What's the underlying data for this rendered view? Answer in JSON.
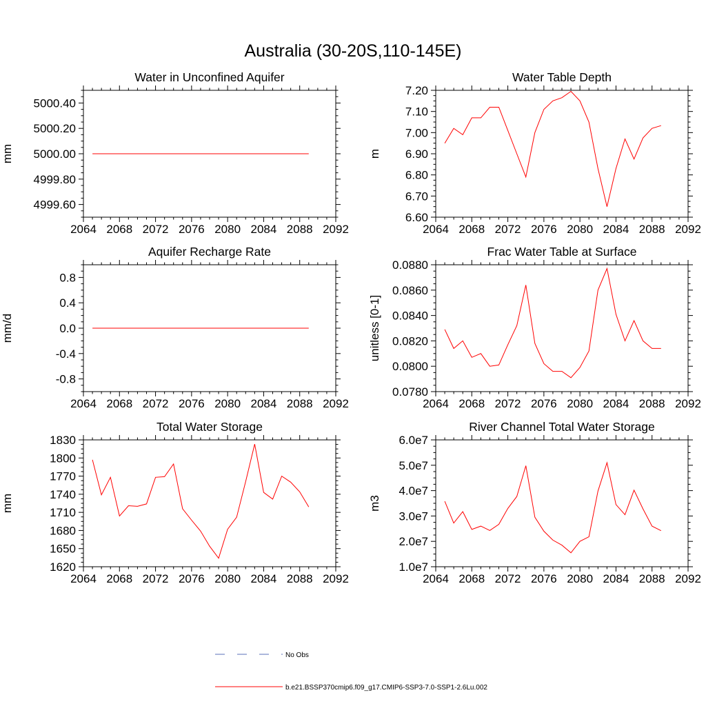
{
  "figure_title": "Australia (30-20S,110-145E)",
  "colors": {
    "series": "#ff0000",
    "obs": "#5a6fb8",
    "axis": "#000000"
  },
  "chart_data": [
    {
      "type": "line",
      "title": "Water in Unconfined Aquifer",
      "ylabel": "mm",
      "xlim": [
        2064,
        2092
      ],
      "ylim": [
        4999.5,
        5000.5
      ],
      "xticks": [
        2064,
        2068,
        2072,
        2076,
        2080,
        2084,
        2088,
        2092
      ],
      "yticks": [
        4999.6,
        4999.8,
        5000.0,
        5000.2,
        5000.4
      ],
      "ytick_labels": [
        "4999.60",
        "4999.80",
        "5000.00",
        "5000.20",
        "5000.40"
      ],
      "yminor": 0.05,
      "x": [
        2065,
        2066,
        2067,
        2068,
        2069,
        2070,
        2071,
        2072,
        2073,
        2074,
        2075,
        2076,
        2077,
        2078,
        2079,
        2080,
        2081,
        2082,
        2083,
        2084,
        2085,
        2086,
        2087,
        2088,
        2089
      ],
      "series": [
        {
          "values": [
            5000,
            5000,
            5000,
            5000,
            5000,
            5000,
            5000,
            5000,
            5000,
            5000,
            5000,
            5000,
            5000,
            5000,
            5000,
            5000,
            5000,
            5000,
            5000,
            5000,
            5000,
            5000,
            5000,
            5000,
            5000
          ]
        }
      ]
    },
    {
      "type": "line",
      "title": "Water Table Depth",
      "ylabel": "m",
      "xlim": [
        2064,
        2092
      ],
      "ylim": [
        6.6,
        7.2
      ],
      "xticks": [
        2064,
        2068,
        2072,
        2076,
        2080,
        2084,
        2088,
        2092
      ],
      "yticks": [
        6.6,
        6.7,
        6.8,
        6.9,
        7.0,
        7.1,
        7.2
      ],
      "ytick_labels": [
        "6.60",
        "6.70",
        "6.80",
        "6.90",
        "7.00",
        "7.10",
        "7.20"
      ],
      "yminor": 0.025,
      "x": [
        2065,
        2066,
        2067,
        2068,
        2069,
        2070,
        2071,
        2072,
        2073,
        2074,
        2075,
        2076,
        2077,
        2078,
        2079,
        2080,
        2081,
        2082,
        2083,
        2084,
        2085,
        2086,
        2087,
        2088,
        2089
      ],
      "series": [
        {
          "values": [
            6.95,
            7.02,
            6.99,
            7.07,
            7.07,
            7.12,
            7.12,
            7.01,
            6.9,
            6.79,
            7.0,
            7.11,
            7.15,
            7.165,
            7.195,
            7.15,
            7.05,
            6.83,
            6.65,
            6.83,
            6.97,
            6.875,
            6.975,
            7.02,
            7.033
          ]
        }
      ]
    },
    {
      "type": "line",
      "title": "Aquifer Recharge Rate",
      "ylabel": "mm/d",
      "xlim": [
        2064,
        2092
      ],
      "ylim": [
        -1.0,
        1.0
      ],
      "xticks": [
        2064,
        2068,
        2072,
        2076,
        2080,
        2084,
        2088,
        2092
      ],
      "yticks": [
        -0.8,
        -0.4,
        0.0,
        0.4,
        0.8
      ],
      "ytick_labels": [
        "-0.8",
        "-0.4",
        "0.0",
        "0.4",
        "0.8"
      ],
      "yminor": 0.1,
      "x": [
        2065,
        2066,
        2067,
        2068,
        2069,
        2070,
        2071,
        2072,
        2073,
        2074,
        2075,
        2076,
        2077,
        2078,
        2079,
        2080,
        2081,
        2082,
        2083,
        2084,
        2085,
        2086,
        2087,
        2088,
        2089
      ],
      "series": [
        {
          "values": [
            0,
            0,
            0,
            0,
            0,
            0,
            0,
            0,
            0,
            0,
            0,
            0,
            0,
            0,
            0,
            0,
            0,
            0,
            0,
            0,
            0,
            0,
            0,
            0,
            0
          ]
        }
      ]
    },
    {
      "type": "line",
      "title": "Frac Water Table at Surface",
      "ylabel": "unitless [0-1]",
      "xlim": [
        2064,
        2092
      ],
      "ylim": [
        0.078,
        0.088
      ],
      "xticks": [
        2064,
        2068,
        2072,
        2076,
        2080,
        2084,
        2088,
        2092
      ],
      "yticks": [
        0.078,
        0.08,
        0.082,
        0.084,
        0.086,
        0.088
      ],
      "ytick_labels": [
        "0.0780",
        "0.0800",
        "0.0820",
        "0.0840",
        "0.0860",
        "0.0880"
      ],
      "yminor": 0.0005,
      "x": [
        2065,
        2066,
        2067,
        2068,
        2069,
        2070,
        2071,
        2072,
        2073,
        2074,
        2075,
        2076,
        2077,
        2078,
        2079,
        2080,
        2081,
        2082,
        2083,
        2084,
        2085,
        2086,
        2087,
        2088,
        2089
      ],
      "series": [
        {
          "values": [
            0.0829,
            0.0814,
            0.082,
            0.0807,
            0.081,
            0.08,
            0.0801,
            0.0817,
            0.0832,
            0.0864,
            0.0818,
            0.0802,
            0.0796,
            0.0796,
            0.0791,
            0.0799,
            0.0812,
            0.086,
            0.0877,
            0.0841,
            0.082,
            0.0836,
            0.082,
            0.0814,
            0.0814
          ]
        }
      ]
    },
    {
      "type": "line",
      "title": "Total Water Storage",
      "ylabel": "mm",
      "xlim": [
        2064,
        2092
      ],
      "ylim": [
        1620,
        1830
      ],
      "xticks": [
        2064,
        2068,
        2072,
        2076,
        2080,
        2084,
        2088,
        2092
      ],
      "yticks": [
        1620,
        1650,
        1680,
        1710,
        1740,
        1770,
        1800,
        1830
      ],
      "ytick_labels": [
        "1620",
        "1650",
        "1680",
        "1710",
        "1740",
        "1770",
        "1800",
        "1830"
      ],
      "yminor": 7.5,
      "x": [
        2065,
        2066,
        2067,
        2068,
        2069,
        2070,
        2071,
        2072,
        2073,
        2074,
        2075,
        2076,
        2077,
        2078,
        2079,
        2080,
        2081,
        2082,
        2083,
        2084,
        2085,
        2086,
        2087,
        2088,
        2089
      ],
      "series": [
        {
          "values": [
            1797,
            1739,
            1768,
            1704,
            1721,
            1720,
            1724,
            1768,
            1769,
            1790,
            1716,
            1697,
            1679,
            1654,
            1634,
            1682,
            1702,
            1761,
            1823,
            1743,
            1732,
            1770,
            1760,
            1744,
            1719
          ]
        }
      ]
    },
    {
      "type": "line",
      "title": "River Channel Total Water Storage",
      "ylabel": "m3",
      "xlim": [
        2064,
        2092
      ],
      "ylim": [
        10000000.0,
        60000000.0
      ],
      "xticks": [
        2064,
        2068,
        2072,
        2076,
        2080,
        2084,
        2088,
        2092
      ],
      "yticks": [
        10000000.0,
        20000000.0,
        30000000.0,
        40000000.0,
        50000000.0,
        60000000.0
      ],
      "ytick_labels": [
        "1.0e7",
        "2.0e7",
        "3.0e7",
        "4.0e7",
        "5.0e7",
        "6.0e7"
      ],
      "yminor": 2500000.0,
      "x": [
        2065,
        2066,
        2067,
        2068,
        2069,
        2070,
        2071,
        2072,
        2073,
        2074,
        2075,
        2076,
        2077,
        2078,
        2079,
        2080,
        2081,
        2082,
        2083,
        2084,
        2085,
        2086,
        2087,
        2088,
        2089
      ],
      "series": [
        {
          "values": [
            35800000.0,
            27200000.0,
            31700000.0,
            24700000.0,
            26000000.0,
            24300000.0,
            26700000.0,
            33000000.0,
            37700000.0,
            49800000.0,
            29500000.0,
            24000000.0,
            20500000.0,
            18500000.0,
            15500000.0,
            20000000.0,
            21800000.0,
            39800000.0,
            51000000.0,
            34500000.0,
            30500000.0,
            40200000.0,
            32800000.0,
            26000000.0,
            24200000.0
          ]
        }
      ]
    }
  ],
  "legend": [
    {
      "style": "dashed",
      "label": "No Obs"
    },
    {
      "style": "solid",
      "label": "b.e21.BSSP370cmip6.f09_g17.CMIP6-SSP3-7.0-SSP1-2.6Lu.002"
    }
  ]
}
